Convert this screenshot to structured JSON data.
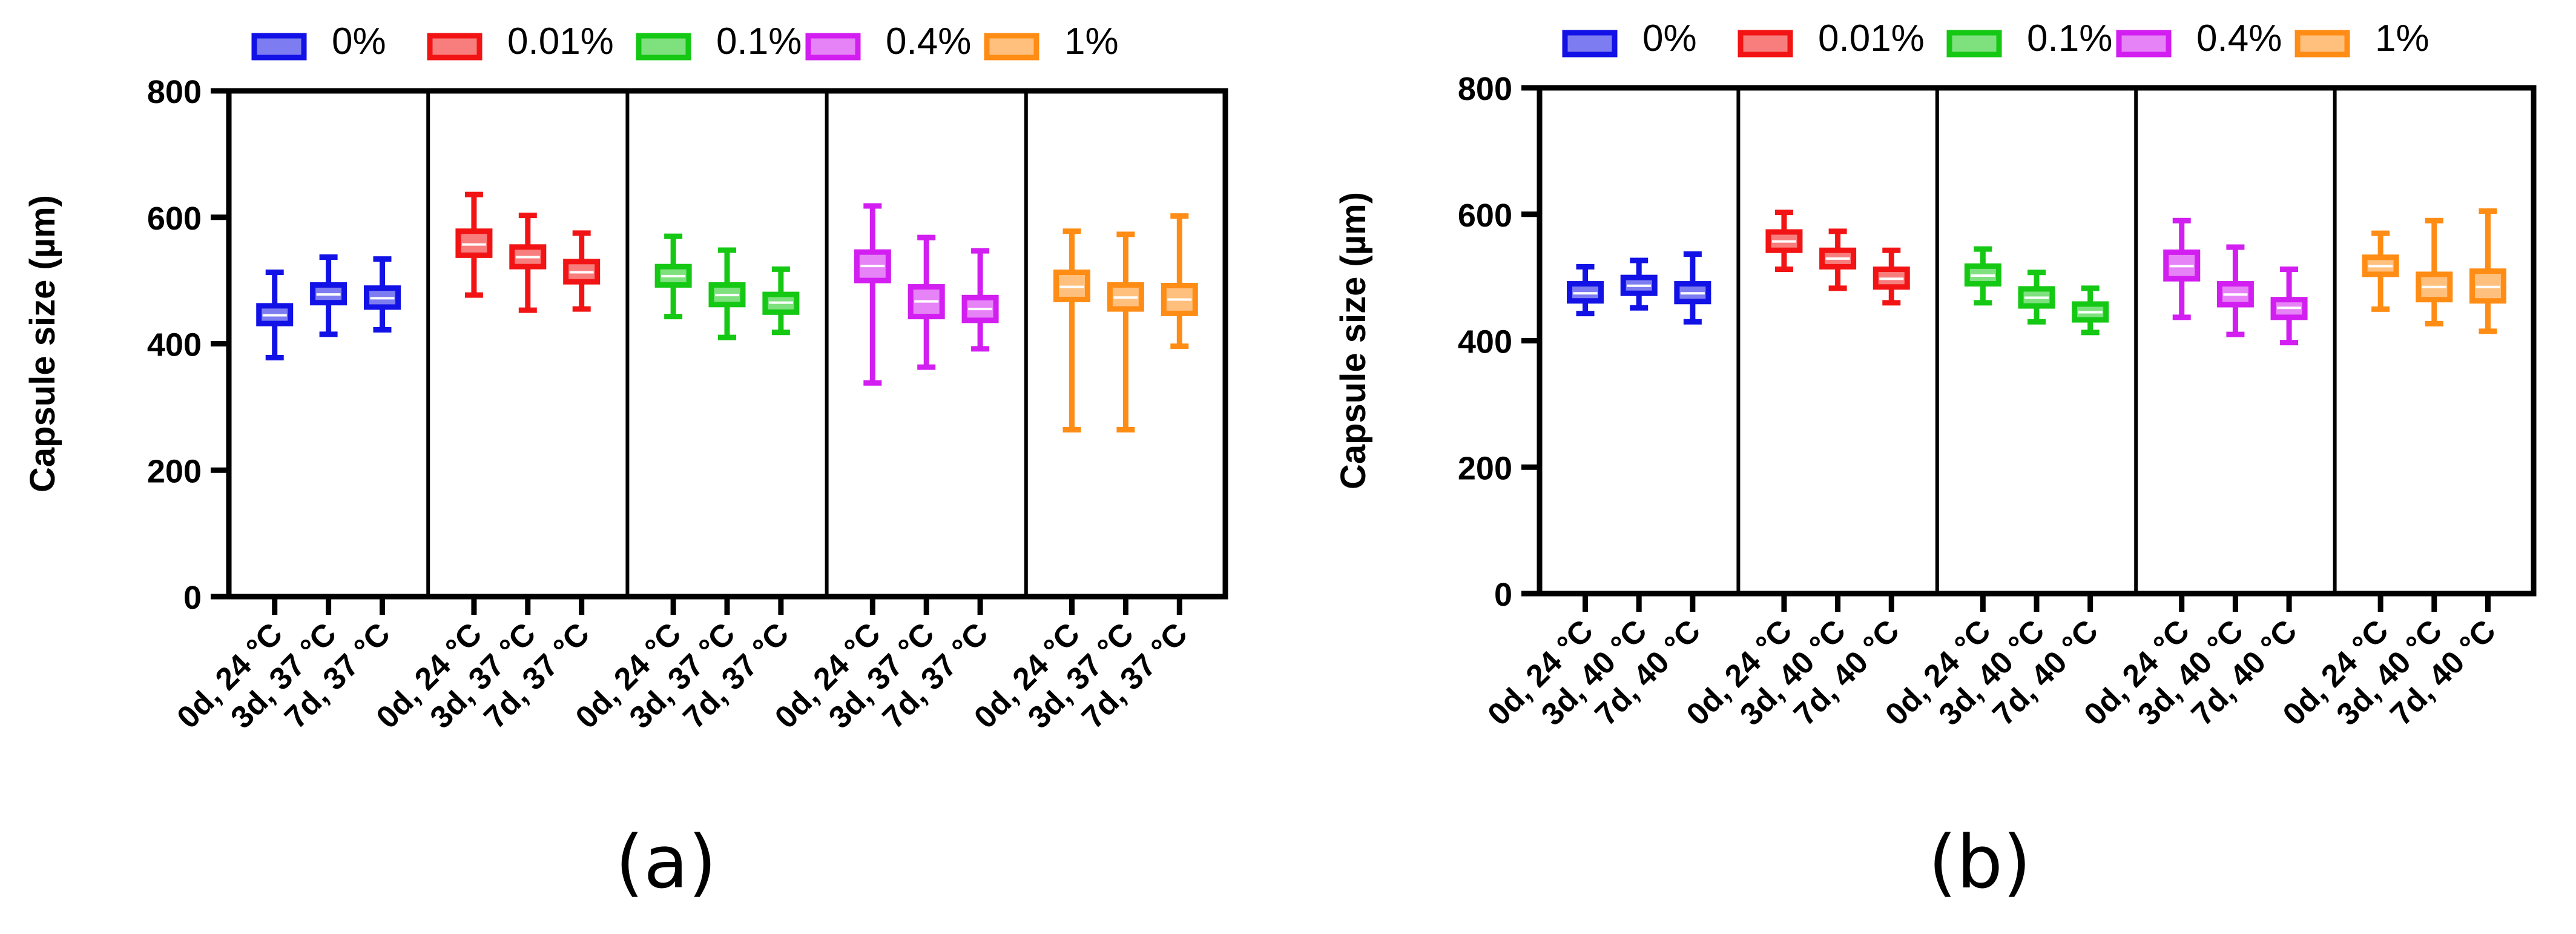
{
  "colors": {
    "0%": "#1212e6",
    "0.01%": "#f21414",
    "0.1%": "#14c814",
    "0.4%": "#d21ef0",
    "1%": "#ff8c14",
    "axis": "#000000"
  },
  "chart_data": [
    {
      "type": "box",
      "panel_label": "(a)",
      "title": "",
      "xlabel": "",
      "ylabel": "Capsule size (µm)",
      "ylim": [
        0,
        800
      ],
      "yticks": [
        0,
        200,
        400,
        600,
        800
      ],
      "ytick_labels": [
        "0",
        "200",
        "400",
        "600",
        "800"
      ],
      "legend": [
        {
          "name": "0%",
          "color_key": "0%"
        },
        {
          "name": "0.01%",
          "color_key": "0.01%"
        },
        {
          "name": "0.1%",
          "color_key": "0.1%"
        },
        {
          "name": "0.4%",
          "color_key": "0.4%"
        },
        {
          "name": "1%",
          "color_key": "1%"
        }
      ],
      "legend_position": "top",
      "groups": [
        {
          "name": "0%",
          "color_key": "0%",
          "boxes": [
            {
              "label": "0d, 24 °C",
              "min": 378,
              "q1": 432,
              "median": 445,
              "q3": 460,
              "max": 513
            },
            {
              "label": "3d, 37 °C",
              "min": 415,
              "q1": 465,
              "median": 478,
              "q3": 493,
              "max": 537
            },
            {
              "label": "7d, 37 °C",
              "min": 422,
              "q1": 458,
              "median": 472,
              "q3": 488,
              "max": 534
            }
          ]
        },
        {
          "name": "0.01%",
          "color_key": "0.01%",
          "boxes": [
            {
              "label": "0d, 24 °C",
              "min": 477,
              "q1": 540,
              "median": 557,
              "q3": 578,
              "max": 636
            },
            {
              "label": "3d, 37 °C",
              "min": 453,
              "q1": 522,
              "median": 537,
              "q3": 553,
              "max": 603
            },
            {
              "label": "7d, 37 °C",
              "min": 455,
              "q1": 498,
              "median": 513,
              "q3": 530,
              "max": 575
            }
          ]
        },
        {
          "name": "0.1%",
          "color_key": "0.1%",
          "boxes": [
            {
              "label": "0d, 24 °C",
              "min": 443,
              "q1": 493,
              "median": 507,
              "q3": 522,
              "max": 570
            },
            {
              "label": "3d, 37 °C",
              "min": 410,
              "q1": 462,
              "median": 477,
              "q3": 493,
              "max": 548
            },
            {
              "label": "7d, 37 °C",
              "min": 418,
              "q1": 450,
              "median": 465,
              "q3": 478,
              "max": 518
            }
          ]
        },
        {
          "name": "0.4%",
          "color_key": "0.4%",
          "boxes": [
            {
              "label": "0d, 24 °C",
              "min": 338,
              "q1": 500,
              "median": 523,
              "q3": 545,
              "max": 618
            },
            {
              "label": "3d, 37 °C",
              "min": 363,
              "q1": 443,
              "median": 467,
              "q3": 490,
              "max": 568
            },
            {
              "label": "7d, 37 °C",
              "min": 392,
              "q1": 437,
              "median": 455,
              "q3": 473,
              "max": 547
            }
          ]
        },
        {
          "name": "1%",
          "color_key": "1%",
          "boxes": [
            {
              "label": "0d, 24 °C",
              "min": 264,
              "q1": 470,
              "median": 490,
              "q3": 513,
              "max": 578
            },
            {
              "label": "3d, 37 °C",
              "min": 264,
              "q1": 455,
              "median": 473,
              "q3": 493,
              "max": 573
            },
            {
              "label": "7d, 37 °C",
              "min": 396,
              "q1": 448,
              "median": 470,
              "q3": 492,
              "max": 602
            }
          ]
        }
      ]
    },
    {
      "type": "box",
      "panel_label": "(b)",
      "title": "",
      "xlabel": "",
      "ylabel": "Capsule size (µm)",
      "ylim": [
        0,
        800
      ],
      "yticks": [
        0,
        200,
        400,
        600,
        800
      ],
      "ytick_labels": [
        "0",
        "200",
        "400",
        "600",
        "800"
      ],
      "legend": [
        {
          "name": "0%",
          "color_key": "0%"
        },
        {
          "name": "0.01%",
          "color_key": "0.01%"
        },
        {
          "name": "0.1%",
          "color_key": "0.1%"
        },
        {
          "name": "0.4%",
          "color_key": "0.4%"
        },
        {
          "name": "1%",
          "color_key": "1%"
        }
      ],
      "legend_position": "top",
      "groups": [
        {
          "name": "0%",
          "color_key": "0%",
          "boxes": [
            {
              "label": "0d, 24 °C",
              "min": 443,
              "q1": 463,
              "median": 475,
              "q3": 490,
              "max": 517
            },
            {
              "label": "3d, 40 °C",
              "min": 452,
              "q1": 475,
              "median": 487,
              "q3": 500,
              "max": 527
            },
            {
              "label": "7d, 40 °C",
              "min": 430,
              "q1": 462,
              "median": 475,
              "q3": 490,
              "max": 537
            }
          ]
        },
        {
          "name": "0.01%",
          "color_key": "0.01%",
          "boxes": [
            {
              "label": "0d, 24 °C",
              "min": 513,
              "q1": 543,
              "median": 557,
              "q3": 572,
              "max": 603
            },
            {
              "label": "3d, 40 °C",
              "min": 483,
              "q1": 517,
              "median": 530,
              "q3": 543,
              "max": 573
            },
            {
              "label": "7d, 40 °C",
              "min": 460,
              "q1": 485,
              "median": 498,
              "q3": 513,
              "max": 543
            }
          ]
        },
        {
          "name": "0.1%",
          "color_key": "0.1%",
          "boxes": [
            {
              "label": "0d, 24 °C",
              "min": 460,
              "q1": 490,
              "median": 503,
              "q3": 518,
              "max": 545
            },
            {
              "label": "3d, 40 °C",
              "min": 430,
              "q1": 455,
              "median": 468,
              "q3": 482,
              "max": 508
            },
            {
              "label": "7d, 40 °C",
              "min": 413,
              "q1": 433,
              "median": 445,
              "q3": 458,
              "max": 483
            }
          ]
        },
        {
          "name": "0.4%",
          "color_key": "0.4%",
          "boxes": [
            {
              "label": "0d, 24 °C",
              "min": 437,
              "q1": 498,
              "median": 518,
              "q3": 540,
              "max": 590
            },
            {
              "label": "3d, 40 °C",
              "min": 410,
              "q1": 457,
              "median": 473,
              "q3": 490,
              "max": 548
            },
            {
              "label": "7d, 40 °C",
              "min": 397,
              "q1": 437,
              "median": 452,
              "q3": 465,
              "max": 513
            }
          ]
        },
        {
          "name": "1%",
          "color_key": "1%",
          "boxes": [
            {
              "label": "0d, 24 °C",
              "min": 450,
              "q1": 505,
              "median": 518,
              "q3": 532,
              "max": 570
            },
            {
              "label": "3d, 40 °C",
              "min": 427,
              "q1": 465,
              "median": 485,
              "q3": 505,
              "max": 590
            },
            {
              "label": "7d, 40 °C",
              "min": 415,
              "q1": 463,
              "median": 485,
              "q3": 510,
              "max": 605
            }
          ]
        }
      ]
    }
  ]
}
